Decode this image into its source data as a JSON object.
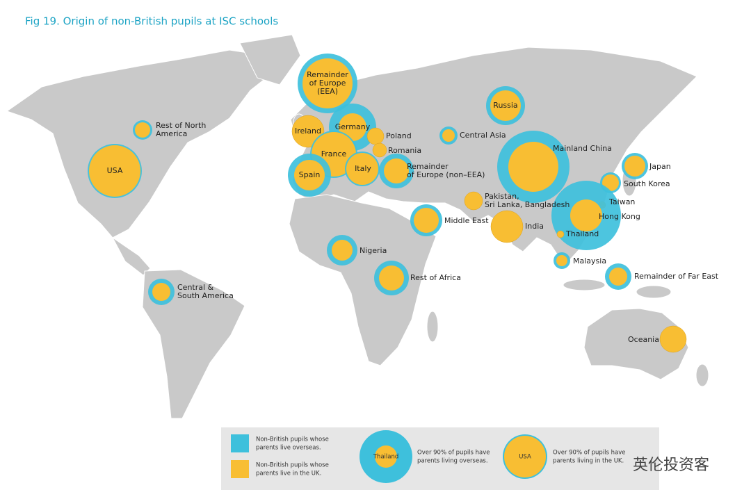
{
  "header": {
    "title": "Fig 19. Origin of non-British pupils at ISC schools"
  },
  "regions": [
    {
      "label": [
        "Remainder",
        "of Europe",
        "(EEA)"
      ]
    },
    {
      "label": [
        "Russia"
      ]
    },
    {
      "label": [
        "Rest of North",
        "America"
      ]
    },
    {
      "label": [
        "Germany"
      ]
    },
    {
      "label": [
        "Ireland"
      ]
    },
    {
      "label": [
        "Poland"
      ]
    },
    {
      "label": [
        "Romania"
      ]
    },
    {
      "label": [
        "France"
      ]
    },
    {
      "label": [
        "Spain"
      ]
    },
    {
      "label": [
        "Italy"
      ]
    },
    {
      "label": [
        "Remainder",
        "of Europe (non–EEA)"
      ]
    },
    {
      "label": [
        "Central Asia"
      ]
    },
    {
      "label": [
        "Mainland China"
      ]
    },
    {
      "label": [
        "Japan"
      ]
    },
    {
      "label": [
        "South Korea"
      ]
    },
    {
      "label": [
        "Taiwan"
      ]
    },
    {
      "label": [
        "Hong Kong"
      ]
    },
    {
      "label": [
        "Thailand"
      ]
    },
    {
      "label": [
        "Pakistan,",
        "Sri Lanka, Bangladesh"
      ]
    },
    {
      "label": [
        "India"
      ]
    },
    {
      "label": [
        "Middle East"
      ]
    },
    {
      "label": [
        "Nigeria"
      ]
    },
    {
      "label": [
        "Rest of Africa"
      ]
    },
    {
      "label": [
        "Malaysia"
      ]
    },
    {
      "label": [
        "Remainder of Far East"
      ]
    },
    {
      "label": [
        "Central &",
        "South America"
      ]
    },
    {
      "label": [
        "USA"
      ]
    },
    {
      "label": [
        "Oceania"
      ]
    }
  ],
  "legend": {
    "items": [
      {
        "text": [
          "Non-British pupils whose",
          "parents live overseas."
        ]
      },
      {
        "text": [
          "Non-British pupils whose",
          "parents live in the UK."
        ]
      },
      {
        "sample": "Thailand",
        "text": [
          "Over 90% of pupils have",
          "parents living overseas."
        ]
      },
      {
        "sample": "USA",
        "text": [
          "Over 90% of pupils have",
          "parents living in the UK."
        ]
      }
    ]
  },
  "watermark": "英伦投资客"
}
